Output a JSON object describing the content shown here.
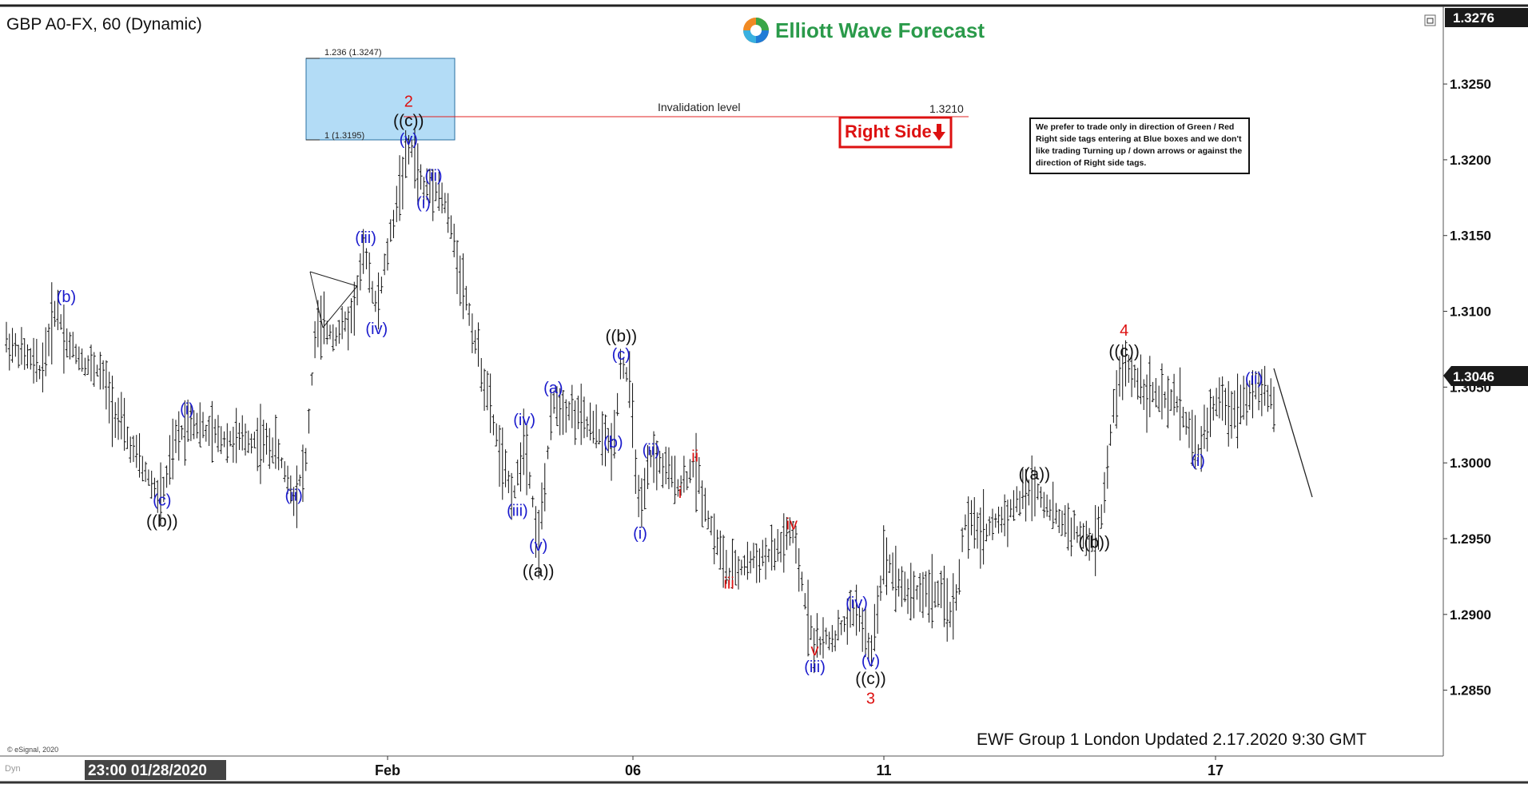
{
  "header": {
    "symbol_title": "GBP A0-FX, 60 (Dynamic)",
    "logo_text": "Elliott Wave Forecast",
    "window_button_icon": "restore-window-icon"
  },
  "price_axis": {
    "current_top": "1.3276",
    "last_price": "1.3046",
    "ticks": [
      "1.3250",
      "1.3200",
      "1.3150",
      "1.3100",
      "1.3050",
      "1.3000",
      "1.2950",
      "1.2900",
      "1.2850"
    ]
  },
  "time_axis": {
    "cursor_label": "23:00 01/28/2020",
    "ticks": [
      "Feb",
      "06",
      "11",
      "17"
    ]
  },
  "annotations": {
    "fib_1236": "1.236 (1.3247)",
    "fib_1": "1 (1.3195)",
    "invalidation_label": "Invalidation level",
    "invalidation_value": "1.3210",
    "right_side_tag": "Right Side",
    "right_side_icon": "down-arrow-icon",
    "note": "We prefer to trade only in direction of Green / Red Right side tags entering at Blue boxes and we don't like trading Turning up / down arrows or against the direction of Right side tags.",
    "footer": "EWF Group 1 London Updated 2.17.2020 9:30 GMT",
    "copyright": "© eSignal, 2020",
    "corner_left": "Dyn"
  },
  "colors": {
    "blue_box": "#b3dcf6",
    "blue_label": "#1a1acc",
    "red_label": "#dd1111",
    "black_label": "#111111",
    "invalidation_line": "#e02020",
    "axis_cursor_bg": "#444444"
  },
  "chart_data": {
    "type": "ohlc",
    "title": "GBP A0-FX, 60 (Dynamic)",
    "ylim": [
      1.2815,
      1.3276
    ],
    "x_ticks": [
      "Feb",
      "06",
      "11",
      "17"
    ],
    "invalidation_level": 1.321,
    "blue_box_range": [
      1.3195,
      1.3247
    ],
    "last_price": 1.3046,
    "wave_labels": [
      {
        "text": "(b)",
        "color": "blue",
        "x": 0.06,
        "y": 1.3106
      },
      {
        "text": "(c)",
        "color": "blue",
        "x": 0.156,
        "y": 1.2972
      },
      {
        "text": "((b))",
        "color": "black",
        "x": 0.156,
        "y": 1.2958
      },
      {
        "text": "(i)",
        "color": "blue",
        "x": 0.181,
        "y": 1.3032
      },
      {
        "text": "(ii)",
        "color": "blue",
        "x": 0.288,
        "y": 1.2975
      },
      {
        "text": "(iii)",
        "color": "blue",
        "x": 0.36,
        "y": 1.3145
      },
      {
        "text": "(iv)",
        "color": "blue",
        "x": 0.371,
        "y": 1.3085
      },
      {
        "text": "2",
        "color": "red",
        "x": 0.403,
        "y": 1.3235
      },
      {
        "text": "((c))",
        "color": "black",
        "x": 0.403,
        "y": 1.3222
      },
      {
        "text": "(v)",
        "color": "blue",
        "x": 0.403,
        "y": 1.321
      },
      {
        "text": "(i)",
        "color": "blue",
        "x": 0.418,
        "y": 1.3168
      },
      {
        "text": "(ii)",
        "color": "blue",
        "x": 0.428,
        "y": 1.3186
      },
      {
        "text": "(iii)",
        "color": "blue",
        "x": 0.512,
        "y": 1.2965
      },
      {
        "text": "(iv)",
        "color": "blue",
        "x": 0.519,
        "y": 1.3025
      },
      {
        "text": "(v)",
        "color": "blue",
        "x": 0.533,
        "y": 1.2942
      },
      {
        "text": "((a))",
        "color": "black",
        "x": 0.533,
        "y": 1.2925
      },
      {
        "text": "(a)",
        "color": "blue",
        "x": 0.548,
        "y": 1.3046
      },
      {
        "text": "(b)",
        "color": "blue",
        "x": 0.608,
        "y": 1.301
      },
      {
        "text": "((b))",
        "color": "black",
        "x": 0.616,
        "y": 1.308
      },
      {
        "text": "(c)",
        "color": "blue",
        "x": 0.616,
        "y": 1.3068
      },
      {
        "text": "(i)",
        "color": "blue",
        "x": 0.635,
        "y": 1.295
      },
      {
        "text": "(ii)",
        "color": "blue",
        "x": 0.646,
        "y": 1.3005
      },
      {
        "text": "ii",
        "color": "red",
        "x": 0.69,
        "y": 1.3001
      },
      {
        "text": "i",
        "color": "red",
        "x": 0.675,
        "y": 1.2977
      },
      {
        "text": "iii",
        "color": "red",
        "x": 0.724,
        "y": 1.2917
      },
      {
        "text": "iv",
        "color": "red",
        "x": 0.787,
        "y": 1.2956
      },
      {
        "text": "v",
        "color": "red",
        "x": 0.81,
        "y": 1.2873
      },
      {
        "text": "(iii)",
        "color": "blue",
        "x": 0.81,
        "y": 1.2862
      },
      {
        "text": "(iv)",
        "color": "blue",
        "x": 0.852,
        "y": 1.2904
      },
      {
        "text": "(v)",
        "color": "blue",
        "x": 0.866,
        "y": 1.2866
      },
      {
        "text": "((c))",
        "color": "black",
        "x": 0.866,
        "y": 1.2854
      },
      {
        "text": "3",
        "color": "red",
        "x": 0.866,
        "y": 1.2841
      },
      {
        "text": "((a))",
        "color": "black",
        "x": 1.03,
        "y": 1.2989
      },
      {
        "text": "((b))",
        "color": "black",
        "x": 1.09,
        "y": 1.2944
      },
      {
        "text": "4",
        "color": "red",
        "x": 1.12,
        "y": 1.3084
      },
      {
        "text": "((c))",
        "color": "black",
        "x": 1.12,
        "y": 1.307
      },
      {
        "text": "(i)",
        "color": "blue",
        "x": 1.194,
        "y": 1.2998
      },
      {
        "text": "(ii)",
        "color": "blue",
        "x": 1.25,
        "y": 1.3052
      }
    ]
  }
}
